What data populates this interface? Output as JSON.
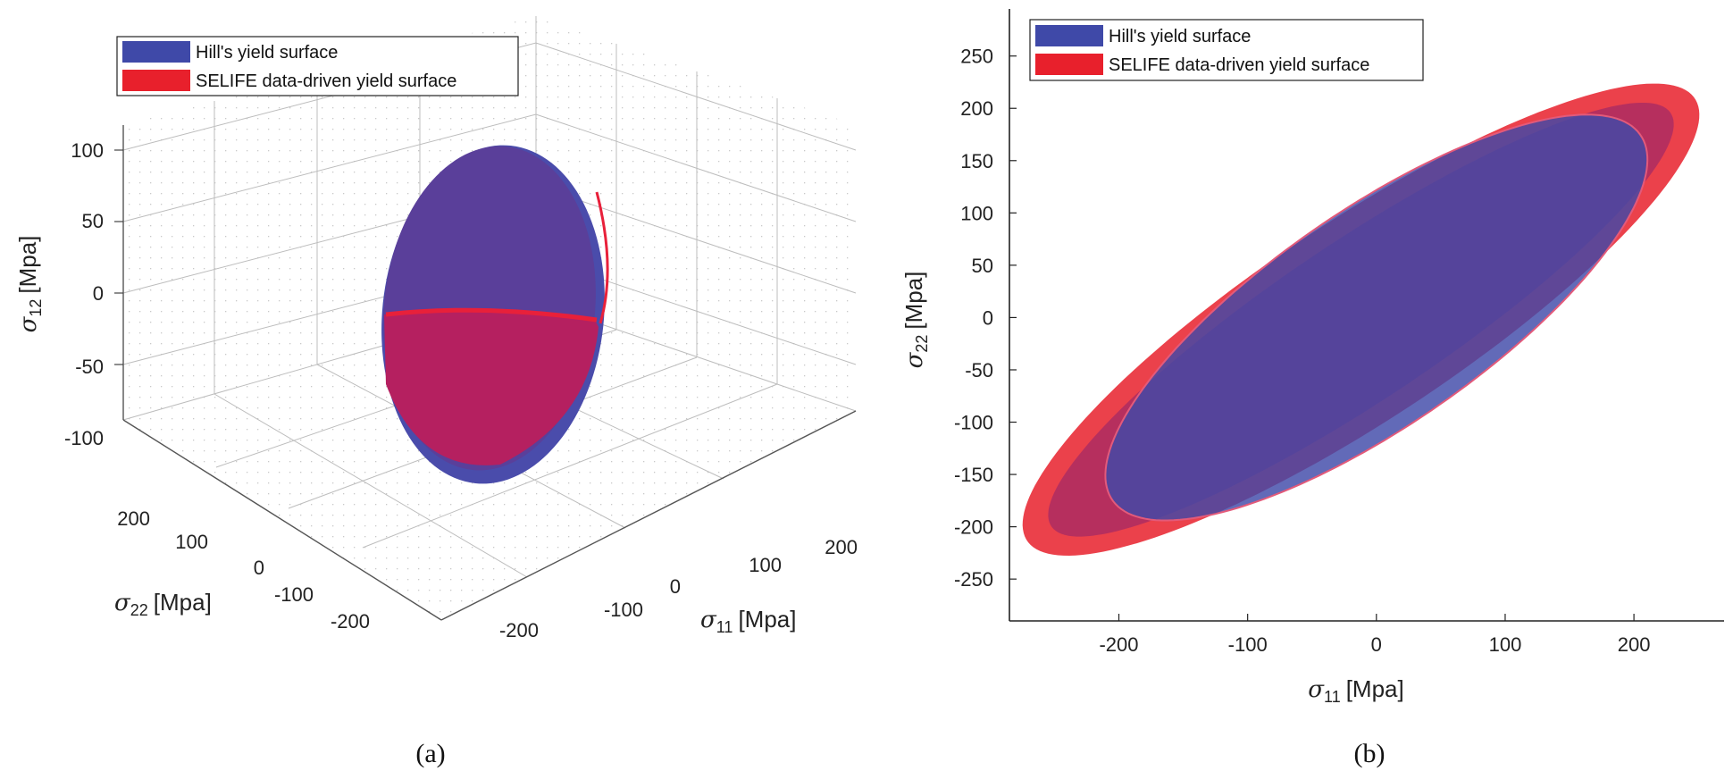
{
  "chart_data": [
    {
      "type": "surface3d",
      "panel_label": "(a)",
      "legend": [
        {
          "label": "Hill's yield surface",
          "color": "#3f49a8"
        },
        {
          "label": "SELIFE data-driven yield surface",
          "color": "#e8202c"
        }
      ],
      "axes": {
        "x": {
          "symbol": "σ",
          "subscript": "11",
          "unit": "[Mpa]",
          "ticks": [
            "-200",
            "-100",
            "0",
            "100",
            "200"
          ],
          "range": [
            -250,
            250
          ]
        },
        "y": {
          "symbol": "σ",
          "subscript": "22",
          "unit": "[Mpa]",
          "ticks": [
            "-200",
            "-100",
            "0",
            "100",
            "200"
          ],
          "range": [
            -250,
            250
          ]
        },
        "z": {
          "symbol": "σ",
          "subscript": "12",
          "unit": "[Mpa]",
          "ticks": [
            "100",
            "50",
            "0",
            "-50",
            "-100"
          ],
          "range": [
            -120,
            120
          ]
        }
      },
      "grid": true
    },
    {
      "type": "area",
      "panel_label": "(b)",
      "legend": [
        {
          "label": "Hill's yield surface",
          "color": "#3f49a8"
        },
        {
          "label": "SELIFE data-driven yield surface",
          "color": "#e8202c"
        }
      ],
      "xlabel": {
        "symbol": "σ",
        "subscript": "11",
        "unit": "[Mpa]"
      },
      "ylabel": {
        "symbol": "σ",
        "subscript": "22",
        "unit": "[Mpa]"
      },
      "xticks": [
        -200,
        -100,
        0,
        100,
        200
      ],
      "yticks": [
        250,
        200,
        150,
        100,
        50,
        0,
        -50,
        -100,
        -150,
        -200,
        -250
      ],
      "xlim": [
        -285,
        270
      ],
      "ylim": [
        -290,
        295
      ],
      "series": [
        {
          "name": "SELIFE data-driven yield surface",
          "color": "#e8202c",
          "ellipse": {
            "center": [
              -12,
              -2
            ],
            "semi_major": 335,
            "semi_minor": 88,
            "angle_deg": 40
          }
        },
        {
          "name": "Hill's yield surface",
          "color": "#3f49a8",
          "ellipse": {
            "center": [
              0,
              0
            ],
            "semi_major": 270,
            "semi_minor": 95,
            "angle_deg": 42
          }
        }
      ]
    }
  ]
}
